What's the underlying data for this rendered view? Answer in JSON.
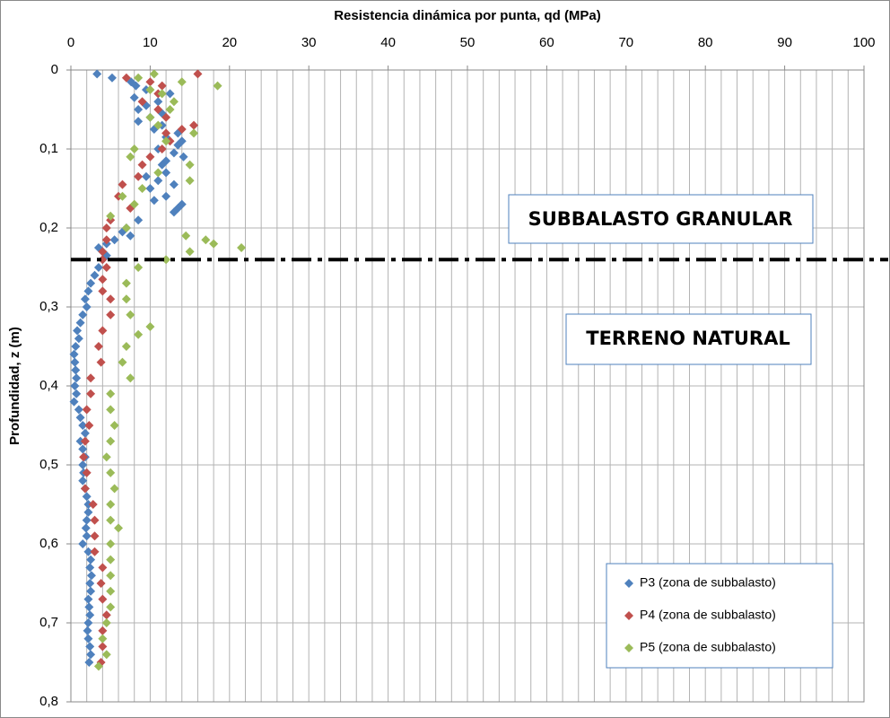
{
  "chart_data": {
    "type": "scatter",
    "x_label": "Resistencia dinámica por punta, qd (MPa)",
    "y_label": "Profundidad, z (m)",
    "xlim": [
      0,
      100
    ],
    "xticks": [
      0,
      10,
      20,
      30,
      40,
      50,
      60,
      70,
      80,
      90,
      100
    ],
    "x_gridlines": [
      0,
      2,
      4,
      6,
      8,
      10,
      12,
      14,
      16,
      18,
      20,
      22,
      24,
      26,
      28,
      30,
      32,
      34,
      36,
      38,
      40,
      42,
      44,
      46,
      48,
      50,
      52,
      54,
      56,
      58,
      60,
      62,
      64,
      66,
      68,
      70,
      72,
      74,
      76,
      78,
      80,
      82,
      84,
      86,
      88,
      90,
      92,
      94,
      96,
      98,
      100
    ],
    "x_axis_position": "top",
    "y_inverted": true,
    "ylim": [
      0,
      0.8
    ],
    "yticks": [
      0,
      {
        "value": 0.1,
        "label": "0,1"
      },
      {
        "value": 0.2,
        "label": "0,2"
      },
      {
        "value": 0.3,
        "label": "0,3"
      },
      {
        "value": 0.4,
        "label": "0,4"
      },
      {
        "value": 0.5,
        "label": "0,5"
      },
      {
        "value": 0.6,
        "label": "0,6"
      },
      {
        "value": 0.7,
        "label": "0,7"
      },
      {
        "value": 0.8,
        "label": "0,8"
      }
    ],
    "grid": true,
    "legend": "lower right",
    "reference_line": {
      "y": 0.24,
      "color": "#000000"
    },
    "annotations": [
      {
        "text": "SUBBALASTO GRANULAR"
      },
      {
        "text": "TERRENO NATURAL"
      }
    ],
    "series": [
      {
        "name": "P3 (zona de subbalasto)",
        "color": "#4f81bd",
        "x": [
          3.3,
          5.2,
          7.6,
          8.2,
          9.5,
          12.5,
          8,
          11,
          9.5,
          8.5,
          11.5,
          10,
          8.5,
          11.5,
          10.5,
          13.5,
          12,
          14,
          13.5,
          11,
          13,
          14.2,
          12,
          11.5,
          12,
          9.5,
          11,
          13,
          10,
          12,
          10.5,
          14,
          13.5,
          13,
          8.5,
          7,
          6.5,
          7.5,
          5.5,
          4.5,
          3.5,
          4,
          4.5,
          4,
          3.5,
          3,
          2.5,
          2.2,
          1.8,
          2,
          1.5,
          1.2,
          0.8,
          1,
          0.6,
          0.4,
          0.5,
          0.6,
          0.7,
          0.5,
          0.7,
          0.4,
          1,
          1.2,
          1.5,
          1.8,
          1.2,
          1.5,
          1.8,
          1.5,
          1.6,
          1.5,
          1.8,
          2,
          2.2,
          2.2,
          2,
          1.9,
          2,
          1.5,
          2.2,
          2.5,
          2.4,
          2.6,
          2.4,
          2.5,
          2.2,
          2.3,
          2.4,
          2.2,
          2.1,
          2.2,
          2.4,
          2.5,
          2.3
        ],
        "y": [
          0.005,
          0.01,
          0.015,
          0.02,
          0.025,
          0.03,
          0.035,
          0.04,
          0.045,
          0.05,
          0.055,
          0.06,
          0.065,
          0.07,
          0.075,
          0.08,
          0.085,
          0.09,
          0.095,
          0.1,
          0.105,
          0.11,
          0.115,
          0.12,
          0.13,
          0.135,
          0.14,
          0.145,
          0.15,
          0.16,
          0.165,
          0.17,
          0.175,
          0.18,
          0.19,
          0.2,
          0.205,
          0.21,
          0.215,
          0.22,
          0.225,
          0.23,
          0.235,
          0.24,
          0.25,
          0.26,
          0.27,
          0.28,
          0.29,
          0.3,
          0.31,
          0.32,
          0.33,
          0.34,
          0.35,
          0.36,
          0.37,
          0.38,
          0.39,
          0.4,
          0.41,
          0.42,
          0.43,
          0.44,
          0.45,
          0.46,
          0.47,
          0.48,
          0.49,
          0.5,
          0.51,
          0.52,
          0.53,
          0.54,
          0.55,
          0.56,
          0.57,
          0.58,
          0.59,
          0.6,
          0.61,
          0.62,
          0.63,
          0.64,
          0.65,
          0.66,
          0.67,
          0.68,
          0.69,
          0.7,
          0.71,
          0.72,
          0.73,
          0.74,
          0.75
        ]
      },
      {
        "name": "P4 (zona de subbalasto)",
        "color": "#c0504d",
        "x": [
          16,
          7,
          10,
          11.5,
          11,
          9,
          11,
          12,
          15.5,
          14,
          12,
          12.5,
          11.5,
          10,
          9,
          8.5,
          6.5,
          6,
          7.5,
          5,
          4.5,
          4.5,
          4,
          4,
          4.5,
          4,
          4,
          5,
          5,
          4,
          3.5,
          3.8,
          2.5,
          2.5,
          2,
          2.3,
          1.8,
          1.6,
          2,
          1.8,
          2.8,
          3,
          3,
          3,
          4,
          3.8,
          4,
          4.5,
          4,
          4,
          3.8
        ],
        "y": [
          0.005,
          0.01,
          0.015,
          0.02,
          0.03,
          0.04,
          0.05,
          0.06,
          0.07,
          0.075,
          0.08,
          0.09,
          0.1,
          0.11,
          0.12,
          0.135,
          0.145,
          0.16,
          0.175,
          0.19,
          0.2,
          0.215,
          0.23,
          0.24,
          0.25,
          0.265,
          0.28,
          0.29,
          0.31,
          0.33,
          0.35,
          0.37,
          0.39,
          0.41,
          0.43,
          0.45,
          0.47,
          0.49,
          0.51,
          0.53,
          0.55,
          0.57,
          0.59,
          0.61,
          0.63,
          0.65,
          0.67,
          0.69,
          0.71,
          0.73,
          0.75
        ]
      },
      {
        "name": "P5 (zona de subbalasto)",
        "color": "#9bbb59",
        "x": [
          10.5,
          8.5,
          14,
          18.5,
          10,
          11.5,
          13,
          12.5,
          10,
          11,
          15.5,
          12,
          8,
          7.5,
          15,
          11,
          15,
          9,
          6.5,
          8,
          5,
          7,
          14.5,
          17,
          18,
          21.5,
          15,
          12,
          8.5,
          7,
          7,
          7.5,
          10,
          8.5,
          7,
          6.5,
          7.5,
          5,
          5,
          5.5,
          5,
          4.5,
          5,
          5.5,
          5,
          5,
          6,
          5,
          5,
          5,
          5,
          5,
          4.5,
          4,
          4.5,
          3.5
        ],
        "y": [
          0.005,
          0.01,
          0.015,
          0.02,
          0.025,
          0.03,
          0.04,
          0.05,
          0.06,
          0.07,
          0.08,
          0.09,
          0.1,
          0.11,
          0.12,
          0.13,
          0.14,
          0.15,
          0.16,
          0.17,
          0.185,
          0.2,
          0.21,
          0.215,
          0.22,
          0.225,
          0.23,
          0.24,
          0.25,
          0.27,
          0.29,
          0.31,
          0.325,
          0.335,
          0.35,
          0.37,
          0.39,
          0.41,
          0.43,
          0.45,
          0.47,
          0.49,
          0.51,
          0.53,
          0.55,
          0.57,
          0.58,
          0.6,
          0.62,
          0.64,
          0.66,
          0.68,
          0.7,
          0.72,
          0.74,
          0.755
        ]
      }
    ]
  }
}
